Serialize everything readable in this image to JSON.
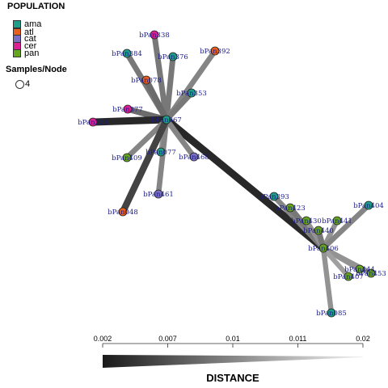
{
  "legend": {
    "population_title": "POPULATION",
    "populations": [
      {
        "label": "ama",
        "color": "#1f9e89"
      },
      {
        "label": "atl",
        "color": "#e8601c"
      },
      {
        "label": "cat",
        "color": "#7b6fc4"
      },
      {
        "label": "cer",
        "color": "#dd1f94"
      },
      {
        "label": "pan",
        "color": "#66a61e"
      }
    ],
    "samples_title": "Samples/Node",
    "sample_size_label": "4"
  },
  "distance": {
    "title": "DISTANCE",
    "ticks": [
      "0.002",
      "0.007",
      "0.01",
      "0.011",
      "0.02"
    ]
  },
  "network": {
    "nodes": [
      {
        "id": "bPan067",
        "pop": "ama"
      },
      {
        "id": "bPan338",
        "pop": "cer"
      },
      {
        "id": "bPan384",
        "pop": "ama"
      },
      {
        "id": "bPan376",
        "pop": "ama"
      },
      {
        "id": "bPan392",
        "pop": "atl"
      },
      {
        "id": "bPan078",
        "pop": "atl"
      },
      {
        "id": "bPan353",
        "pop": "ama"
      },
      {
        "id": "bPan377",
        "pop": "cer"
      },
      {
        "id": "bPan326",
        "pop": "cer"
      },
      {
        "id": "bPan409",
        "pop": "pan"
      },
      {
        "id": "bPan077",
        "pop": "ama"
      },
      {
        "id": "bPan468",
        "pop": "cat"
      },
      {
        "id": "bPan461",
        "pop": "cat"
      },
      {
        "id": "bPan048",
        "pop": "atl"
      },
      {
        "id": "bPan406",
        "pop": "pan"
      },
      {
        "id": "bPan393",
        "pop": "ama"
      },
      {
        "id": "bPan423",
        "pop": "pan"
      },
      {
        "id": "bPan430",
        "pop": "pan"
      },
      {
        "id": "bPan441",
        "pop": "pan"
      },
      {
        "id": "bPan404",
        "pop": "ama"
      },
      {
        "id": "bPan440",
        "pop": "pan"
      },
      {
        "id": "bPan444",
        "pop": "pan"
      },
      {
        "id": "bPan453",
        "pop": "pan"
      },
      {
        "id": "bPan407",
        "pop": "pan"
      },
      {
        "id": "bPan085",
        "pop": "ama"
      }
    ],
    "edges": [
      {
        "from": "bPan067",
        "to": "bPan406",
        "dist": 0.002
      },
      {
        "from": "bPan067",
        "to": "bPan338",
        "dist": 0.008
      },
      {
        "from": "bPan067",
        "to": "bPan384",
        "dist": 0.008
      },
      {
        "from": "bPan067",
        "to": "bPan376",
        "dist": 0.008
      },
      {
        "from": "bPan067",
        "to": "bPan392",
        "dist": 0.009
      },
      {
        "from": "bPan067",
        "to": "bPan078",
        "dist": 0.007
      },
      {
        "from": "bPan067",
        "to": "bPan353",
        "dist": 0.008
      },
      {
        "from": "bPan067",
        "to": "bPan377",
        "dist": 0.007
      },
      {
        "from": "bPan067",
        "to": "bPan326",
        "dist": 0.002
      },
      {
        "from": "bPan067",
        "to": "bPan409",
        "dist": 0.009
      },
      {
        "from": "bPan067",
        "to": "bPan077",
        "dist": 0.01
      },
      {
        "from": "bPan067",
        "to": "bPan468",
        "dist": 0.009
      },
      {
        "from": "bPan067",
        "to": "bPan461",
        "dist": 0.009
      },
      {
        "from": "bPan067",
        "to": "bPan048",
        "dist": 0.004
      },
      {
        "from": "bPan406",
        "to": "bPan393",
        "dist": 0.009
      },
      {
        "from": "bPan406",
        "to": "bPan423",
        "dist": 0.008
      },
      {
        "from": "bPan406",
        "to": "bPan430",
        "dist": 0.01
      },
      {
        "from": "bPan406",
        "to": "bPan441",
        "dist": 0.01
      },
      {
        "from": "bPan406",
        "to": "bPan404",
        "dist": 0.009
      },
      {
        "from": "bPan406",
        "to": "bPan440",
        "dist": 0.008
      },
      {
        "from": "bPan406",
        "to": "bPan444",
        "dist": 0.01
      },
      {
        "from": "bPan406",
        "to": "bPan453",
        "dist": 0.01
      },
      {
        "from": "bPan406",
        "to": "bPan407",
        "dist": 0.011
      },
      {
        "from": "bPan406",
        "to": "bPan085",
        "dist": 0.01
      }
    ]
  }
}
